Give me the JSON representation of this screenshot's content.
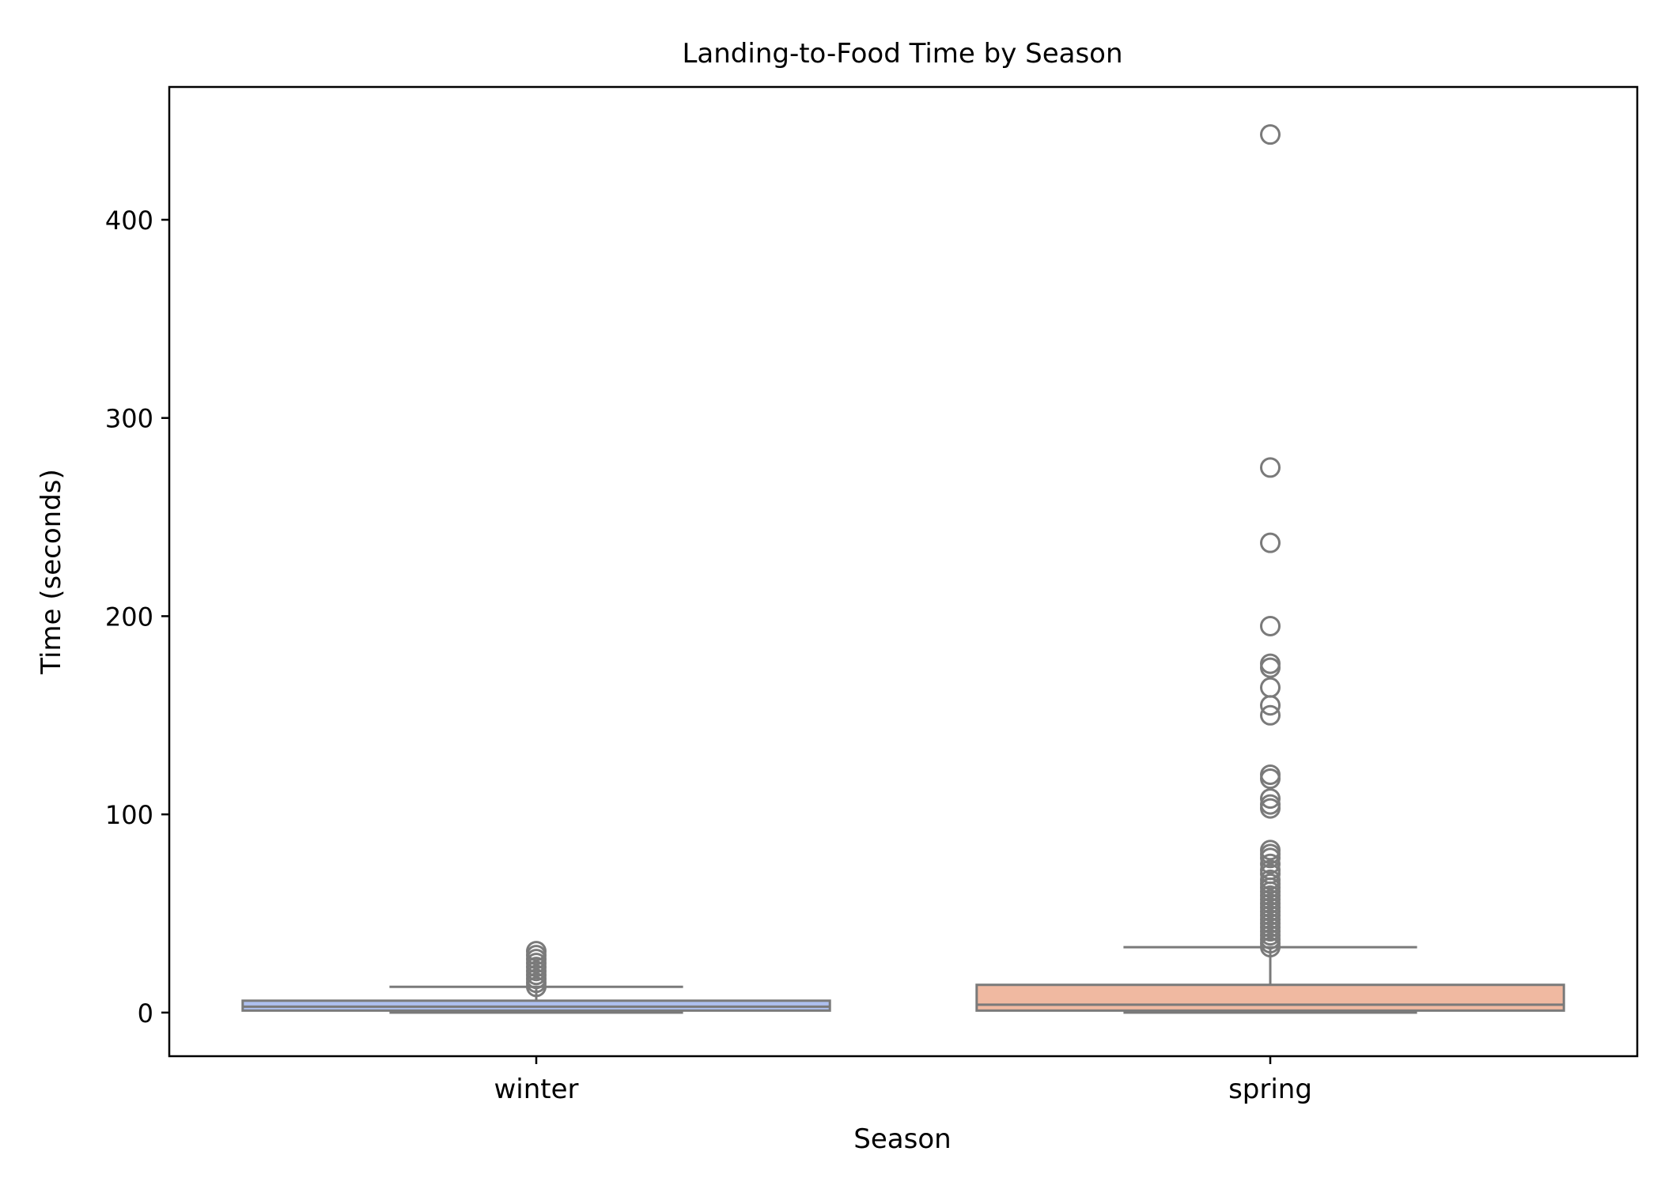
{
  "chart_data": {
    "type": "box",
    "title": "Landing-to-Food Time by Season",
    "xlabel": "Season",
    "ylabel": "Time (seconds)",
    "categories": [
      "winter",
      "spring"
    ],
    "ylim": [
      -22,
      467
    ],
    "yticks": [
      0,
      100,
      200,
      300,
      400
    ],
    "ytick_labels": [
      "0",
      "100",
      "200",
      "300",
      "400"
    ],
    "grid": false,
    "legend": "none",
    "colors": {
      "winter": "#aec0ef",
      "spring": "#f0b9a1",
      "box_edge": "#7a7a7a",
      "axis": "#000000"
    },
    "boxes": [
      {
        "category": "winter",
        "whislo": 0,
        "q1": 1,
        "median": 3,
        "q3": 6,
        "whishi": 13,
        "fliers": [
          13,
          15,
          17,
          19,
          21,
          23,
          25,
          27,
          29,
          31
        ]
      },
      {
        "category": "spring",
        "whislo": 0,
        "q1": 1,
        "median": 4,
        "q3": 14,
        "whishi": 33,
        "fliers": [
          33,
          35,
          37,
          39,
          41,
          43,
          45,
          47,
          49,
          51,
          53,
          55,
          57,
          59,
          61,
          63,
          65,
          67,
          70,
          72,
          75,
          78,
          80,
          82,
          103,
          105,
          108,
          118,
          120,
          150,
          155,
          164,
          174,
          176,
          195,
          237,
          275,
          443
        ]
      }
    ]
  }
}
